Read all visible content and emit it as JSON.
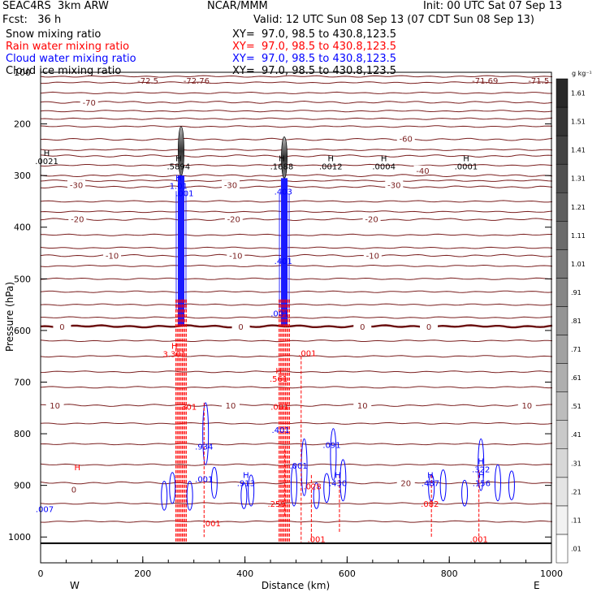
{
  "header": {
    "line1_left": "SEAC4RS  3km ARW",
    "line1_mid": "NCAR/MMM",
    "line1_right": "Init: 00 UTC Sat 07 Sep 13",
    "line2_left": "Fcst:   36 h",
    "line2_right": "Valid: 12 UTC Sun 08 Sep 13 (07 CDT Sun 08 Sep 13)",
    "fields": [
      {
        "label": "Snow mixing ratio",
        "xy": "XY=  97.0, 98.5 to 430.8,123.5",
        "color": "#000000"
      },
      {
        "label": "Rain water mixing ratio",
        "xy": "XY=  97.0, 98.5 to 430.8,123.5",
        "color": "#ff0000"
      },
      {
        "label": "Cloud water mixing ratio",
        "xy": "XY=  97.0, 98.5 to 430.8,123.5",
        "color": "#0000ff"
      },
      {
        "label": "Cloud ice mixing ratio",
        "xy": "XY=  97.0, 98.5 to 430.8,123.5",
        "color": "#000000"
      }
    ]
  },
  "colorbar": {
    "unit": "g kg⁻¹",
    "levels": [
      ".01",
      ".11",
      ".21",
      ".31",
      ".41",
      ".51",
      ".61",
      ".71",
      ".81",
      ".91",
      "1.01",
      "1.11",
      "1.21",
      "1.31",
      "1.41",
      "1.51",
      "1.61"
    ]
  },
  "chart_data": {
    "type": "contour",
    "xlabel": "Distance (km)",
    "ylabel": "Pressure (hPa)",
    "xlim": [
      0,
      1000
    ],
    "ylim": [
      1050,
      100
    ],
    "xticks": [
      "0",
      "200",
      "400",
      "600",
      "800",
      "1000"
    ],
    "yticks": [
      "100",
      "200",
      "300",
      "400",
      "500",
      "600",
      "700",
      "800",
      "900",
      "1000"
    ],
    "end_labels": {
      "left": "W",
      "right": "E"
    },
    "temperature_isotherms": [
      {
        "label": "-70",
        "p": 158
      },
      {
        "label": "-60",
        "p": 230
      },
      {
        "label": "-50",
        "p": 262
      },
      {
        "label": "-40",
        "p": 300
      },
      {
        "label": "-30",
        "p": 322
      },
      {
        "label": "-20",
        "p": 385
      },
      {
        "label": "-10",
        "p": 455
      },
      {
        "label": "0",
        "p": 592
      },
      {
        "label": "10",
        "p": 745
      },
      {
        "label": "20",
        "p": 895
      }
    ],
    "top_labels": [
      {
        "text": "-72.5",
        "x": 210,
        "p": 122
      },
      {
        "text": "-72.76",
        "x": 305,
        "p": 122
      },
      {
        "text": "-71.69",
        "x": 870,
        "p": 122
      },
      {
        "text": "-71.5",
        "x": 975,
        "p": 122
      }
    ],
    "isotherm_labels": [
      {
        "text": "-70",
        "x": 95,
        "p": 158
      },
      {
        "text": "-60",
        "x": 715,
        "p": 228
      },
      {
        "text": "-40",
        "x": 748,
        "p": 290
      },
      {
        "text": "-30",
        "x": 70,
        "p": 318
      },
      {
        "text": "-30",
        "x": 372,
        "p": 318
      },
      {
        "text": "-30",
        "x": 692,
        "p": 318
      },
      {
        "text": "-20",
        "x": 72,
        "p": 384
      },
      {
        "text": "-20",
        "x": 378,
        "p": 384
      },
      {
        "text": "-20",
        "x": 648,
        "p": 384
      },
      {
        "text": "-10",
        "x": 140,
        "p": 455
      },
      {
        "text": "-10",
        "x": 382,
        "p": 455
      },
      {
        "text": "-10",
        "x": 650,
        "p": 455
      },
      {
        "text": "0",
        "x": 42,
        "p": 592
      },
      {
        "text": "0",
        "x": 392,
        "p": 592
      },
      {
        "text": "0",
        "x": 630,
        "p": 592
      },
      {
        "text": "0",
        "x": 760,
        "p": 592
      },
      {
        "text": "10",
        "x": 28,
        "p": 745
      },
      {
        "text": "10",
        "x": 372,
        "p": 745
      },
      {
        "text": "10",
        "x": 630,
        "p": 745
      },
      {
        "text": "10",
        "x": 952,
        "p": 745
      },
      {
        "text": "20",
        "x": 715,
        "p": 895
      },
      {
        "text": "0",
        "x": 65,
        "p": 908
      }
    ],
    "max_labels": [
      {
        "h": "H",
        "v": ".0021",
        "x": 12,
        "p": 276,
        "color": "#000000"
      },
      {
        "h": "H",
        "v": ".5894",
        "x": 270,
        "p": 286,
        "color": "#000000"
      },
      {
        "h": "H",
        "v": ".1688",
        "x": 472,
        "p": 286,
        "color": "#000000"
      },
      {
        "h": "H",
        "v": ".0012",
        "x": 568,
        "p": 286,
        "color": "#000000"
      },
      {
        "h": "H",
        "v": ".0004",
        "x": 672,
        "p": 286,
        "color": "#000000"
      },
      {
        "h": "H",
        "v": ".0001",
        "x": 833,
        "p": 286,
        "color": "#000000"
      },
      {
        "h": "H",
        "v": "1.01",
        "x": 270,
        "p": 324,
        "color": "#0000ff"
      },
      {
        "h": "",
        "v": ".001",
        "x": 282,
        "p": 338,
        "color": "#0000ff"
      },
      {
        "h": "",
        "v": ".403",
        "x": 475,
        "p": 335,
        "color": "#0000ff"
      },
      {
        "h": "",
        "v": ".401",
        "x": 475,
        "p": 470,
        "color": "#0000ff"
      },
      {
        "h": "",
        "v": ".001",
        "x": 468,
        "p": 571,
        "color": "#0000ff"
      },
      {
        "h": "H",
        "v": "3.301",
        "x": 262,
        "p": 650,
        "color": "#ff0000"
      },
      {
        "h": "",
        "v": ".001",
        "x": 522,
        "p": 648,
        "color": "#ff0000"
      },
      {
        "h": "H",
        "v": ".561",
        "x": 466,
        "p": 698,
        "color": "#ff0000"
      },
      {
        "h": "",
        "v": ".301",
        "x": 288,
        "p": 752,
        "color": "#ff0000"
      },
      {
        "h": "",
        "v": ".001",
        "x": 468,
        "p": 752,
        "color": "#ff0000"
      },
      {
        "h": "",
        "v": ".401",
        "x": 470,
        "p": 797,
        "color": "#0000ff"
      },
      {
        "h": "",
        "v": ".934",
        "x": 320,
        "p": 829,
        "color": "#0000ff"
      },
      {
        "h": "",
        "v": ".091",
        "x": 570,
        "p": 826,
        "color": "#0000ff"
      },
      {
        "h": "H",
        "v": ".322",
        "x": 862,
        "p": 873,
        "color": "#0000ff"
      },
      {
        "h": "",
        "v": ".001",
        "x": 505,
        "p": 866,
        "color": "#0000ff"
      },
      {
        "h": "H",
        "v": ".913",
        "x": 402,
        "p": 900,
        "color": "#0000ff"
      },
      {
        "h": "H",
        "v": ".430",
        "x": 582,
        "p": 900,
        "color": "#0000ff"
      },
      {
        "h": "H",
        "v": ".487",
        "x": 763,
        "p": 900,
        "color": "#0000ff"
      },
      {
        "h": "H",
        "v": ".156",
        "x": 863,
        "p": 900,
        "color": "#0000ff"
      },
      {
        "h": "",
        "v": ".001",
        "x": 320,
        "p": 892,
        "color": "#0000ff"
      },
      {
        "h": "",
        "v": ".028",
        "x": 532,
        "p": 906,
        "color": "#ff0000"
      },
      {
        "h": "",
        "v": ".259",
        "x": 462,
        "p": 940,
        "color": "#ff0000"
      },
      {
        "h": "",
        "v": ".082",
        "x": 762,
        "p": 940,
        "color": "#ff0000"
      },
      {
        "h": "",
        "v": ".007",
        "x": 8,
        "p": 950,
        "color": "#0000ff"
      },
      {
        "h": "",
        "v": ".001",
        "x": 335,
        "p": 978,
        "color": "#ff0000"
      },
      {
        "h": "",
        "v": ".001",
        "x": 540,
        "p": 1008,
        "color": "#ff0000"
      },
      {
        "h": "",
        "v": ".001",
        "x": 858,
        "p": 1008,
        "color": "#ff0000"
      },
      {
        "h": "H",
        "v": "",
        "x": 72,
        "p": 885,
        "color": "#ff0000"
      }
    ],
    "convective_columns": [
      {
        "x": 275,
        "p_top": 205,
        "p_bottom": 1012,
        "snow_top": 205,
        "snow_bottom": 300
      },
      {
        "x": 477,
        "p_top": 225,
        "p_bottom": 1012,
        "snow_top": 225,
        "snow_bottom": 305
      }
    ]
  }
}
